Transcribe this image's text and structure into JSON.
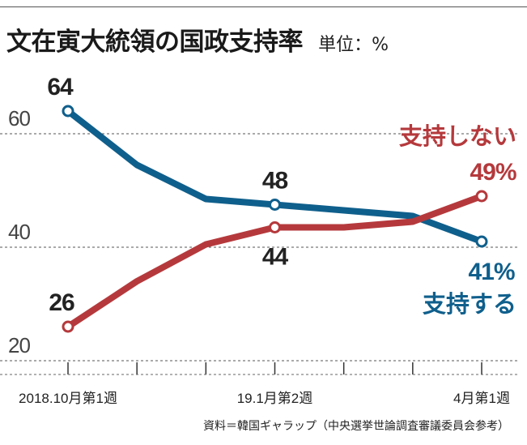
{
  "title": "文在寅大統領の国政支持率",
  "unit_label": "単位：%",
  "source": "資料＝韓国ギャラップ（中央選挙世論調査審議委員会参考）",
  "chart_data": {
    "type": "line",
    "title": "文在寅大統領の国政支持率",
    "ylabel": "単位：%",
    "ylim": [
      20,
      68
    ],
    "yticks": [
      20,
      40,
      60
    ],
    "x": [
      0,
      1,
      2,
      3,
      4,
      5,
      6
    ],
    "xtick_labels": [
      "2018.10月第1週",
      "",
      "",
      "19.1月第2週",
      "",
      "",
      "4月第1週"
    ],
    "series": [
      {
        "name": "支持する",
        "color": "#0f5f8c",
        "values": [
          64,
          54.5,
          48.5,
          47.5,
          46.5,
          45.5,
          41
        ],
        "marked_points": [
          0,
          3,
          6
        ],
        "point_labels": [
          {
            "index": 0,
            "text": "64"
          },
          {
            "index": 3,
            "text": "48"
          },
          {
            "index": 6,
            "text": "41%"
          }
        ],
        "series_label": "支持する"
      },
      {
        "name": "支持しない",
        "color": "#b5393c",
        "values": [
          26,
          34,
          40.5,
          43.5,
          43.5,
          44.5,
          49
        ],
        "marked_points": [
          0,
          3,
          6
        ],
        "point_labels": [
          {
            "index": 0,
            "text": "26"
          },
          {
            "index": 3,
            "text": "44"
          },
          {
            "index": 6,
            "text": "49%"
          }
        ],
        "series_label": "支持しない"
      }
    ]
  }
}
